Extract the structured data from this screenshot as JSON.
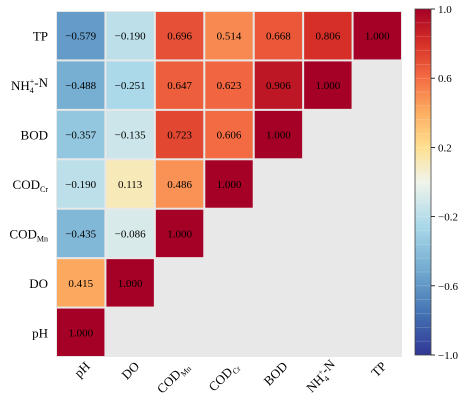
{
  "chart_data": {
    "type": "heatmap",
    "subtype": "lower-triangle correlation matrix",
    "rows": [
      {
        "label": "TP",
        "sub": "",
        "sup": "",
        "tail": ""
      },
      {
        "label": "NH",
        "sub": "4",
        "sup": "+",
        "tail": "-N"
      },
      {
        "label": "BOD",
        "sub": "",
        "sup": "",
        "tail": ""
      },
      {
        "label": "COD",
        "sub": "Cr",
        "sup": "",
        "tail": ""
      },
      {
        "label": "COD",
        "sub": "Mn",
        "sup": "",
        "tail": ""
      },
      {
        "label": "DO",
        "sub": "",
        "sup": "",
        "tail": ""
      },
      {
        "label": "pH",
        "sub": "",
        "sup": "",
        "tail": ""
      }
    ],
    "columns": [
      {
        "label": "pH",
        "sub": "",
        "sup": "",
        "tail": ""
      },
      {
        "label": "DO",
        "sub": "",
        "sup": "",
        "tail": ""
      },
      {
        "label": "COD",
        "sub": "Mn",
        "sup": "",
        "tail": ""
      },
      {
        "label": "COD",
        "sub": "Cr",
        "sup": "",
        "tail": ""
      },
      {
        "label": "BOD",
        "sub": "",
        "sup": "",
        "tail": ""
      },
      {
        "label": "NH",
        "sub": "4",
        "sup": "+",
        "tail": "-N"
      },
      {
        "label": "TP",
        "sub": "",
        "sup": "",
        "tail": ""
      }
    ],
    "values": [
      [
        -0.579,
        -0.19,
        0.696,
        0.514,
        0.668,
        0.806,
        1.0
      ],
      [
        -0.488,
        -0.251,
        0.647,
        0.623,
        0.906,
        1.0,
        null
      ],
      [
        -0.357,
        -0.135,
        0.723,
        0.606,
        1.0,
        null,
        null
      ],
      [
        -0.19,
        0.113,
        0.486,
        1.0,
        null,
        null,
        null
      ],
      [
        -0.435,
        -0.086,
        1.0,
        null,
        null,
        null,
        null
      ],
      [
        0.415,
        1.0,
        null,
        null,
        null,
        null,
        null
      ],
      [
        1.0,
        null,
        null,
        null,
        null,
        null,
        null
      ]
    ],
    "display_values": [
      [
        "−0.579",
        "−0.190",
        "0.696",
        "0.514",
        "0.668",
        "0.806",
        "1.000"
      ],
      [
        "−0.488",
        "−0.251",
        "0.647",
        "0.623",
        "0.906",
        "1.000"
      ],
      [
        "−0.357",
        "−0.135",
        "0.723",
        "0.606",
        "1.000"
      ],
      [
        "−0.190",
        "0.113",
        "0.486",
        "1.000"
      ],
      [
        "−0.435",
        "−0.086",
        "1.000"
      ],
      [
        "0.415",
        "1.000"
      ],
      [
        "1.000"
      ]
    ],
    "colorbar": {
      "range": [
        -1.0,
        1.0
      ],
      "ticks": [
        1.0,
        0.6,
        0.2,
        -0.2,
        -0.6,
        -1.0
      ],
      "tick_labels": [
        "1.0",
        "0.6",
        "0.2",
        "−0.2",
        "−0.6",
        "−1.0"
      ],
      "colormap": "RdBu_r"
    },
    "colors": {
      "missing_background": "#e8e8e8",
      "grid": "#ffffff"
    }
  }
}
